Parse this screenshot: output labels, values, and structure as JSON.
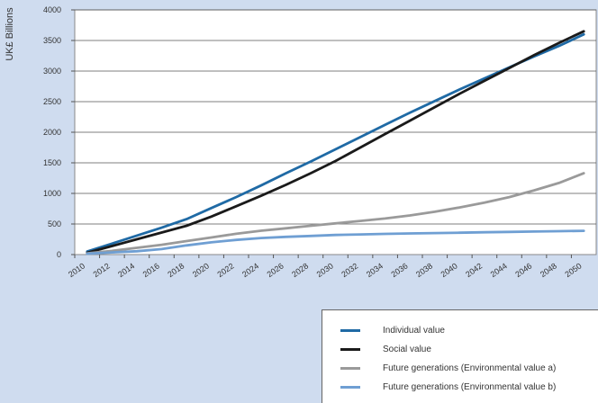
{
  "chart_data": {
    "type": "line",
    "ylabel": "UK£ Billions",
    "ylim": [
      0,
      4000
    ],
    "y_ticks": [
      "4000",
      "3500",
      "3000",
      "2500",
      "2000",
      "1500",
      "1000",
      "500",
      "0"
    ],
    "categories": [
      "2010",
      "2012",
      "2014",
      "2016",
      "2018",
      "2020",
      "2022",
      "2024",
      "2026",
      "2028",
      "2030",
      "2032",
      "2034",
      "2036",
      "2038",
      "2040",
      "2042",
      "2044",
      "2046",
      "2048",
      "2050"
    ],
    "x": [
      2011,
      2019,
      2031,
      2051
    ],
    "grid": "horizontal",
    "legend_position": "bottom-right",
    "series": [
      {
        "name": "Individual value",
        "color": "#1f6aa5",
        "x": [
          2011,
          2013,
          2015,
          2017,
          2019,
          2021,
          2023,
          2025,
          2027,
          2029,
          2031,
          2033,
          2035,
          2037,
          2039,
          2041,
          2043,
          2045,
          2047,
          2049,
          2051
        ],
        "values": [
          50,
          180,
          310,
          440,
          580,
          760,
          940,
          1130,
          1330,
          1520,
          1720,
          1920,
          2120,
          2320,
          2510,
          2700,
          2880,
          3060,
          3240,
          3410,
          3600
        ]
      },
      {
        "name": "Social value",
        "color": "#1a1a1a",
        "x": [
          2011,
          2013,
          2015,
          2017,
          2019,
          2021,
          2023,
          2025,
          2027,
          2029,
          2031,
          2033,
          2035,
          2037,
          2039,
          2041,
          2043,
          2045,
          2047,
          2049,
          2051
        ],
        "values": [
          30,
          140,
          250,
          360,
          470,
          620,
          790,
          960,
          1140,
          1330,
          1530,
          1750,
          1970,
          2190,
          2410,
          2630,
          2840,
          3050,
          3260,
          3460,
          3650
        ]
      },
      {
        "name": "Future generations (Environmental value a)",
        "color": "#9a9a9a",
        "x": [
          2011,
          2013,
          2015,
          2017,
          2019,
          2021,
          2023,
          2025,
          2027,
          2029,
          2031,
          2033,
          2035,
          2037,
          2039,
          2041,
          2043,
          2045,
          2047,
          2049,
          2051
        ],
        "values": [
          20,
          60,
          110,
          160,
          220,
          280,
          340,
          390,
          430,
          470,
          510,
          550,
          590,
          640,
          700,
          770,
          850,
          940,
          1050,
          1170,
          1330
        ]
      },
      {
        "name": "Future generations (Environmental value b)",
        "color": "#6f9fd3",
        "x": [
          2011,
          2013,
          2015,
          2017,
          2019,
          2021,
          2023,
          2025,
          2027,
          2029,
          2031,
          2033,
          2035,
          2037,
          2039,
          2041,
          2043,
          2045,
          2047,
          2049,
          2051
        ],
        "values": [
          15,
          35,
          55,
          90,
          150,
          200,
          240,
          270,
          290,
          305,
          320,
          330,
          338,
          345,
          352,
          358,
          364,
          370,
          376,
          382,
          388
        ]
      }
    ]
  }
}
